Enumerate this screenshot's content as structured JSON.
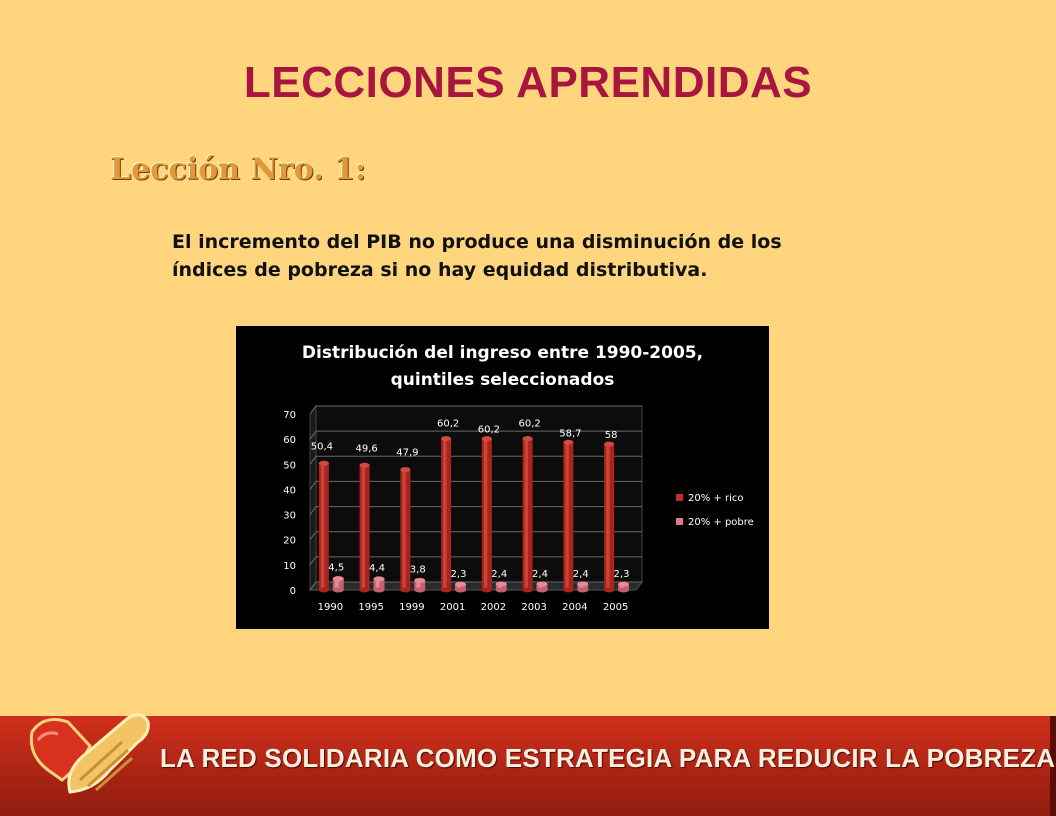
{
  "slide": {
    "title": "LECCIONES APRENDIDAS",
    "lesson_heading": "Lección Nro. 1:",
    "lesson_body_line1": "El incremento del PIB no produce una disminución de los",
    "lesson_body_line2": "índices de pobreza si no hay equidad distributiva.",
    "footer_text": "LA RED SOLIDARIA COMO ESTRATEGIA PARA REDUCIR LA POBREZA"
  },
  "colors": {
    "background": "#ffd67e",
    "title": "#a8153e",
    "footer": "#c02a18",
    "series_rich": "#c0302a",
    "series_poor": "#e07a8a"
  },
  "chart_data": {
    "type": "bar",
    "title_line1": "Distribución del ingreso entre 1990-2005,",
    "title_line2": "quintiles seleccionados",
    "categories": [
      "1990",
      "1995",
      "1999",
      "2001",
      "2002",
      "2003",
      "2004",
      "2005"
    ],
    "series": [
      {
        "name": "20% + rico",
        "values": [
          50.4,
          49.6,
          47.9,
          60.2,
          60.2,
          60.2,
          58.7,
          58
        ],
        "labels": [
          "50,4",
          "49,6",
          "47,9",
          "60,2",
          "60,2",
          "60,2",
          "58,7",
          "58"
        ]
      },
      {
        "name": "20% + pobre",
        "values": [
          4.5,
          4.4,
          3.8,
          2.3,
          2.4,
          2.4,
          2.4,
          2.3
        ],
        "labels": [
          "4,5",
          "4,4",
          "3,8",
          "2,3",
          "2,4",
          "2,4",
          "2,4",
          "2,3"
        ]
      }
    ],
    "ylim": [
      0,
      70
    ],
    "yticks": [
      "0",
      "10",
      "20",
      "30",
      "40",
      "50",
      "60",
      "70"
    ],
    "legend_position": "right",
    "grid": true
  }
}
